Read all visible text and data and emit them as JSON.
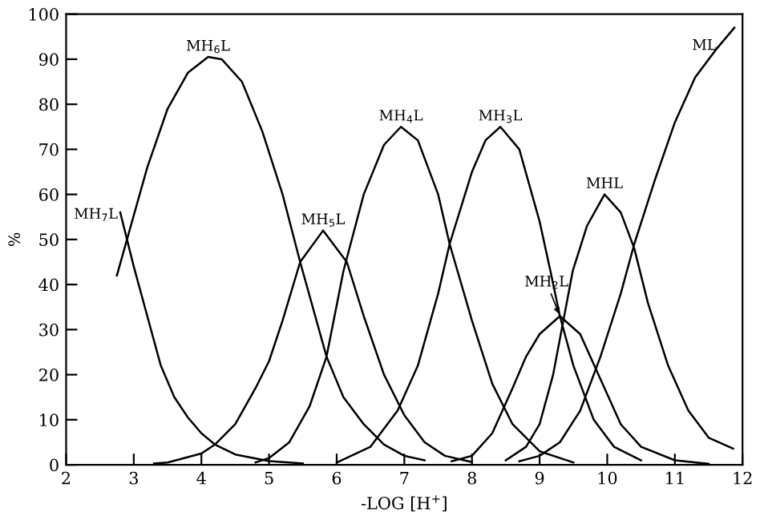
{
  "chart_data": {
    "type": "line",
    "xlabel": "-LOG [H$^{+}$]",
    "ylabel": "%",
    "xlim": [
      2,
      12
    ],
    "ylim": [
      0,
      100
    ],
    "xticks": [
      2,
      3,
      4,
      5,
      6,
      7,
      8,
      9,
      10,
      11,
      12
    ],
    "yticks": [
      0,
      10,
      20,
      30,
      40,
      50,
      60,
      70,
      80,
      90,
      100
    ],
    "grid": false,
    "legend": false,
    "marker": "none",
    "line_style": "solid",
    "series": [
      {
        "name": "MH$_{7}$L",
        "color": "#000000",
        "x": [
          2.8,
          2.9,
          3.0,
          3.2,
          3.4,
          3.6,
          3.8,
          4.0,
          4.2,
          4.5,
          5.0,
          5.5
        ],
        "values": [
          56,
          50,
          44,
          33,
          22,
          15,
          10.5,
          7,
          4.5,
          2.3,
          0.8,
          0.3
        ]
      },
      {
        "name": "MH$_{6}$L",
        "color": "#000000",
        "x": [
          2.75,
          2.9,
          3.2,
          3.5,
          3.8,
          4.1,
          4.3,
          4.6,
          4.9,
          5.2,
          5.46,
          5.85,
          6.1,
          6.4,
          6.7,
          7.0,
          7.3
        ],
        "values": [
          42,
          50,
          66,
          79,
          87,
          90.5,
          90,
          85,
          74,
          60,
          45,
          24,
          15,
          9,
          4.5,
          2,
          1
        ]
      },
      {
        "name": "MH$_{5}$L",
        "color": "#000000",
        "x": [
          3.3,
          3.5,
          4.0,
          4.2,
          4.5,
          4.8,
          5.0,
          5.2,
          5.46,
          5.8,
          6.0,
          6.15,
          6.4,
          6.7,
          7.0,
          7.3,
          7.6,
          8.0
        ],
        "values": [
          0.3,
          0.5,
          2.5,
          4.5,
          9,
          17,
          23,
          32,
          45,
          52,
          48,
          45,
          33,
          20,
          11,
          5,
          2,
          0.6
        ]
      },
      {
        "name": "MH$_{4}$L",
        "color": "#000000",
        "x": [
          4.8,
          5.0,
          5.3,
          5.6,
          5.85,
          6.1,
          6.4,
          6.7,
          6.95,
          7.2,
          7.5,
          7.67,
          8.0,
          8.3,
          8.6,
          9.0,
          9.5
        ],
        "values": [
          0.5,
          1.5,
          5,
          13,
          24,
          43,
          60,
          71,
          75,
          72,
          60,
          49,
          32,
          18,
          9,
          3,
          0.5
        ]
      },
      {
        "name": "MH$_{3}$L",
        "color": "#000000",
        "x": [
          6.0,
          6.5,
          6.9,
          7.2,
          7.5,
          7.67,
          8.0,
          8.2,
          8.42,
          8.7,
          9.0,
          9.16,
          9.3,
          9.5,
          9.8,
          10.1,
          10.5
        ],
        "values": [
          0.5,
          4,
          12,
          22,
          38,
          49,
          65,
          72,
          75,
          70,
          54,
          43,
          33,
          22,
          10,
          4,
          1
        ]
      },
      {
        "name": "MH$_{2}$L",
        "color": "#000000",
        "x": [
          7.7,
          8.0,
          8.3,
          8.6,
          8.8,
          9.0,
          9.3,
          9.6,
          9.9,
          10.2,
          10.5,
          11.0,
          11.5
        ],
        "values": [
          0.8,
          2,
          7,
          17,
          24,
          29,
          33,
          29,
          19,
          9,
          4,
          1,
          0.2
        ]
      },
      {
        "name": "MHL",
        "color": "#000000",
        "x": [
          8.5,
          8.8,
          9.0,
          9.2,
          9.49,
          9.7,
          9.96,
          10.2,
          10.4,
          10.6,
          10.9,
          11.2,
          11.5,
          11.86
        ],
        "values": [
          1,
          4,
          9,
          20,
          43,
          53,
          60,
          56,
          48,
          36,
          22,
          12,
          6,
          3.6
        ]
      },
      {
        "name": "ML",
        "color": "#000000",
        "x": [
          8.7,
          9.0,
          9.3,
          9.6,
          9.9,
          10.2,
          10.4,
          10.7,
          11.0,
          11.3,
          11.6,
          11.88
        ],
        "values": [
          0.8,
          2,
          5,
          12,
          24,
          38,
          49,
          63,
          76,
          86,
          92,
          97
        ]
      }
    ]
  }
}
